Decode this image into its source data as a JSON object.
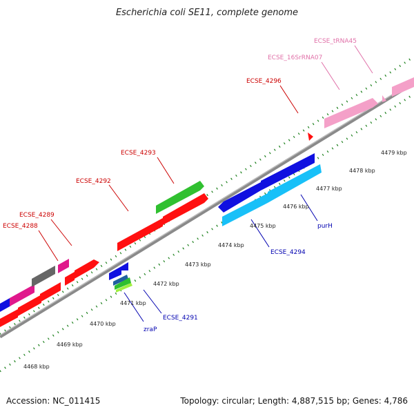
{
  "title": "Escherichia coli SE11, complete genome",
  "footer": {
    "accession": "Accession: NC_011415",
    "summary": "Topology: circular; Length: 4,887,515 bp; Genes: 4,786"
  },
  "colors": {
    "backbone": "#8a8a8a",
    "tick": "#1b7f1b",
    "red": "#ff1010",
    "blue": "#1010e0",
    "cyan": "#18c0f8",
    "green": "#30c030",
    "pink_rna": "#f4a0c8",
    "magenta": "#e0188c",
    "gray": "#666666",
    "lime": "#a0f040",
    "label_red": "#cc0000",
    "label_blue": "#0000b0",
    "label_pink": "#e070a8"
  },
  "scale_labels": [
    "4468 kbp",
    "4469 kbp",
    "4470 kbp",
    "4471 kbp",
    "4472 kbp",
    "4473 kbp",
    "4474 kbp",
    "4475 kbp",
    "4476 kbp",
    "4477 kbp",
    "4478 kbp",
    "4479 kbp"
  ],
  "upper_labels": [
    "ECSE_4288",
    "ECSE_4289",
    "ECSE_4292",
    "ECSE_4293",
    "ECSE_4296",
    "ECSE_16SrRNA07",
    "ECSE_tRNA45"
  ],
  "lower_labels": [
    "zraP",
    "ECSE_4291",
    "ECSE_4294",
    "purH"
  ]
}
